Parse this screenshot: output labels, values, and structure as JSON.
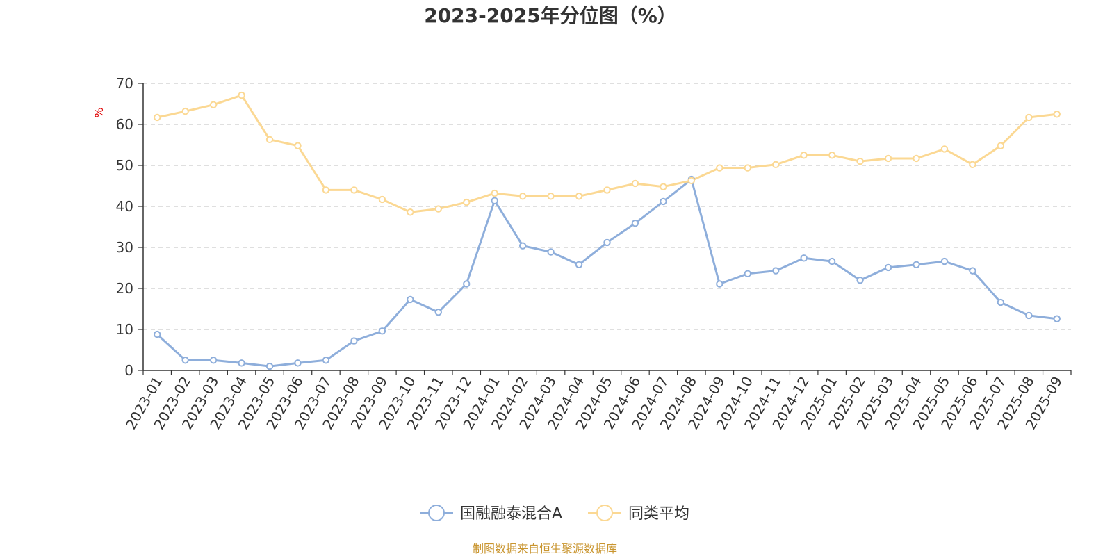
{
  "chart_data": {
    "type": "line",
    "title": "2023-2025年分位图（%）",
    "ylabel": "%",
    "xlabel": "",
    "ylim": [
      0,
      70
    ],
    "yticks": [
      0,
      10,
      20,
      30,
      40,
      50,
      60,
      70
    ],
    "grid": true,
    "legend_position": "bottom-center",
    "categories": [
      "2023-01",
      "2023-02",
      "2023-03",
      "2023-04",
      "2023-05",
      "2023-06",
      "2023-07",
      "2023-08",
      "2023-09",
      "2023-10",
      "2023-11",
      "2023-12",
      "2024-01",
      "2024-02",
      "2024-03",
      "2024-04",
      "2024-05",
      "2024-06",
      "2024-07",
      "2024-08",
      "2024-09",
      "2024-10",
      "2024-11",
      "2024-12",
      "2025-01",
      "2025-02",
      "2025-03",
      "2025-04",
      "2025-05",
      "2025-06",
      "2025-07",
      "2025-08",
      "2025-09"
    ],
    "series": [
      {
        "name": "国融融泰混合A",
        "color": "#8eaedb",
        "values": [
          8.8,
          2.5,
          2.5,
          1.8,
          1.0,
          1.8,
          2.5,
          7.2,
          9.6,
          17.3,
          14.2,
          21.1,
          41.4,
          30.4,
          28.9,
          25.8,
          31.2,
          35.9,
          41.2,
          46.6,
          21.1,
          23.6,
          24.3,
          27.4,
          26.6,
          22.0,
          25.1,
          25.8,
          26.6,
          24.3,
          16.6,
          13.4,
          12.6
        ]
      },
      {
        "name": "同类平均",
        "color": "#fbd893",
        "values": [
          61.7,
          63.2,
          64.8,
          67.1,
          56.3,
          54.8,
          44.0,
          44.0,
          41.7,
          38.6,
          39.4,
          41.0,
          43.2,
          42.5,
          42.5,
          42.5,
          44.0,
          45.6,
          44.8,
          46.3,
          49.4,
          49.4,
          50.2,
          52.5,
          52.5,
          51.0,
          51.7,
          51.7,
          54.0,
          50.2,
          54.8,
          61.7,
          62.5
        ]
      }
    ]
  },
  "footer": {
    "source": "制图数据来自恒生聚源数据库"
  }
}
